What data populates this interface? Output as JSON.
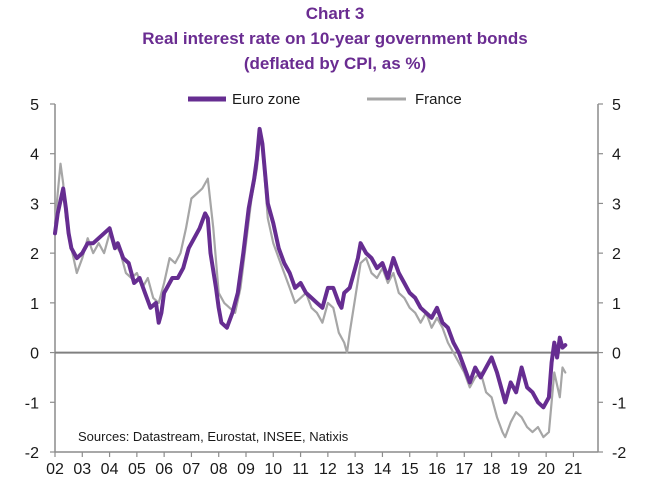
{
  "chart_data": {
    "type": "line",
    "title": "Chart 3",
    "subtitle": "Real interest rate on 10-year government bonds",
    "subtitle2": "(deflated by CPI, as %)",
    "source": "Sources: Datastream, Eurostat, INSEE, Natixis",
    "ylim": [
      -2,
      5
    ],
    "yticks": [
      5,
      4,
      3,
      2,
      1,
      0,
      -1,
      -2
    ],
    "xlim": [
      2002,
      2021.9
    ],
    "xticks": [
      "02",
      "03",
      "04",
      "05",
      "06",
      "07",
      "08",
      "09",
      "10",
      "11",
      "12",
      "13",
      "14",
      "15",
      "16",
      "17",
      "18",
      "19",
      "20",
      "21"
    ],
    "legend_position": "top",
    "colors": {
      "Euro zone": "#662d91",
      "France": "#a6a6a6",
      "zero_line": "#808080"
    },
    "series": [
      {
        "name": "Euro zone",
        "x": [
          2002.0,
          2002.1,
          2002.3,
          2002.4,
          2002.5,
          2002.6,
          2002.8,
          2003.0,
          2003.2,
          2003.4,
          2003.6,
          2003.8,
          2004.0,
          2004.2,
          2004.3,
          2004.5,
          2004.7,
          2004.9,
          2005.1,
          2005.3,
          2005.5,
          2005.7,
          2005.8,
          2005.9,
          2006.0,
          2006.1,
          2006.3,
          2006.5,
          2006.7,
          2006.9,
          2007.1,
          2007.3,
          2007.5,
          2007.6,
          2007.7,
          2007.9,
          2008.0,
          2008.1,
          2008.3,
          2008.5,
          2008.7,
          2008.9,
          2009.1,
          2009.3,
          2009.4,
          2009.5,
          2009.6,
          2009.7,
          2009.8,
          2010.0,
          2010.2,
          2010.4,
          2010.6,
          2010.8,
          2011.0,
          2011.2,
          2011.4,
          2011.6,
          2011.8,
          2012.0,
          2012.2,
          2012.4,
          2012.5,
          2012.6,
          2012.8,
          2013.0,
          2013.1,
          2013.2,
          2013.4,
          2013.6,
          2013.8,
          2014.0,
          2014.2,
          2014.4,
          2014.6,
          2014.8,
          2015.0,
          2015.2,
          2015.4,
          2015.6,
          2015.8,
          2016.0,
          2016.2,
          2016.4,
          2016.6,
          2016.8,
          2017.0,
          2017.2,
          2017.4,
          2017.6,
          2017.8,
          2018.0,
          2018.2,
          2018.4,
          2018.5,
          2018.7,
          2018.9,
          2019.1,
          2019.3,
          2019.5,
          2019.7,
          2019.9,
          2020.1,
          2020.2,
          2020.3,
          2020.4,
          2020.5,
          2020.6,
          2020.7
        ],
        "values": [
          2.4,
          2.8,
          3.3,
          2.9,
          2.4,
          2.1,
          1.9,
          2.0,
          2.2,
          2.2,
          2.3,
          2.4,
          2.5,
          2.1,
          2.2,
          1.9,
          1.8,
          1.4,
          1.5,
          1.2,
          0.9,
          1.0,
          0.6,
          0.8,
          1.2,
          1.3,
          1.5,
          1.5,
          1.7,
          2.1,
          2.3,
          2.5,
          2.8,
          2.7,
          2.0,
          1.3,
          0.9,
          0.6,
          0.5,
          0.8,
          1.2,
          2.0,
          2.9,
          3.5,
          3.9,
          4.5,
          4.2,
          3.6,
          3.0,
          2.6,
          2.1,
          1.8,
          1.6,
          1.3,
          1.4,
          1.2,
          1.1,
          1.0,
          0.9,
          1.3,
          1.3,
          1.0,
          0.9,
          1.2,
          1.3,
          1.7,
          1.9,
          2.2,
          2.0,
          1.9,
          1.7,
          1.8,
          1.5,
          1.9,
          1.6,
          1.4,
          1.2,
          1.1,
          0.9,
          0.8,
          0.7,
          0.9,
          0.6,
          0.5,
          0.2,
          0.0,
          -0.3,
          -0.6,
          -0.3,
          -0.5,
          -0.3,
          -0.1,
          -0.4,
          -0.8,
          -1.0,
          -0.6,
          -0.8,
          -0.3,
          -0.7,
          -0.8,
          -1.0,
          -1.1,
          -0.9,
          -0.2,
          0.2,
          -0.1,
          0.3,
          0.1,
          0.15
        ]
      },
      {
        "name": "France",
        "x": [
          2002.0,
          2002.1,
          2002.2,
          2002.3,
          2002.4,
          2002.6,
          2002.8,
          2003.0,
          2003.2,
          2003.4,
          2003.6,
          2003.8,
          2004.0,
          2004.2,
          2004.4,
          2004.6,
          2004.8,
          2005.0,
          2005.2,
          2005.4,
          2005.6,
          2005.8,
          2006.0,
          2006.2,
          2006.4,
          2006.6,
          2006.8,
          2007.0,
          2007.2,
          2007.4,
          2007.6,
          2007.8,
          2008.0,
          2008.2,
          2008.4,
          2008.6,
          2008.8,
          2009.0,
          2009.2,
          2009.4,
          2009.5,
          2009.6,
          2009.7,
          2009.8,
          2010.0,
          2010.2,
          2010.4,
          2010.6,
          2010.8,
          2011.0,
          2011.2,
          2011.4,
          2011.6,
          2011.8,
          2012.0,
          2012.2,
          2012.4,
          2012.6,
          2012.7,
          2012.8,
          2013.0,
          2013.2,
          2013.4,
          2013.6,
          2013.8,
          2014.0,
          2014.2,
          2014.4,
          2014.6,
          2014.8,
          2015.0,
          2015.2,
          2015.4,
          2015.6,
          2015.8,
          2016.0,
          2016.2,
          2016.4,
          2016.6,
          2016.8,
          2017.0,
          2017.2,
          2017.4,
          2017.6,
          2017.8,
          2018.0,
          2018.2,
          2018.4,
          2018.5,
          2018.7,
          2018.9,
          2019.1,
          2019.3,
          2019.5,
          2019.7,
          2019.9,
          2020.1,
          2020.2,
          2020.3,
          2020.5,
          2020.6,
          2020.7
        ],
        "values": [
          2.6,
          3.2,
          3.8,
          3.4,
          2.7,
          2.1,
          1.6,
          1.9,
          2.3,
          2.0,
          2.2,
          2.0,
          2.4,
          2.2,
          2.0,
          1.6,
          1.5,
          1.6,
          1.3,
          1.5,
          1.1,
          1.0,
          1.4,
          1.9,
          1.8,
          2.0,
          2.5,
          3.1,
          3.2,
          3.3,
          3.5,
          2.5,
          1.2,
          1.0,
          0.9,
          0.8,
          1.3,
          2.2,
          3.1,
          3.7,
          4.3,
          4.1,
          3.4,
          2.7,
          2.2,
          1.9,
          1.6,
          1.3,
          1.0,
          1.1,
          1.2,
          0.9,
          0.8,
          0.6,
          1.0,
          0.9,
          0.4,
          0.2,
          0.0,
          0.4,
          1.1,
          1.8,
          1.9,
          1.6,
          1.5,
          1.7,
          1.4,
          1.6,
          1.2,
          1.1,
          0.9,
          0.8,
          0.6,
          0.8,
          0.5,
          0.7,
          0.5,
          0.2,
          0.0,
          -0.2,
          -0.4,
          -0.7,
          -0.5,
          -0.4,
          -0.8,
          -0.9,
          -1.3,
          -1.6,
          -1.7,
          -1.4,
          -1.2,
          -1.3,
          -1.5,
          -1.6,
          -1.5,
          -1.7,
          -1.6,
          -1.0,
          -0.4,
          -0.9,
          -0.3,
          -0.4
        ]
      }
    ]
  }
}
